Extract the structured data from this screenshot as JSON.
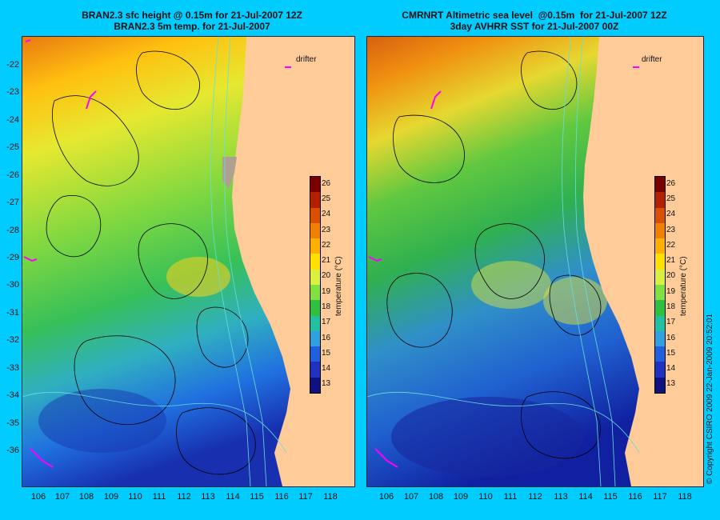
{
  "left_panel": {
    "title_line1": "BRAN2.3 sfc height @ 0.15m for 21-Jul-2007 12Z",
    "title_line2": "BRAN2.3 5m temp. for 21-Jul-2007"
  },
  "right_panel": {
    "title_line1": "CMRNRT Altimetric sea level  @0.15m  for 21-Jul-2007 12Z",
    "title_line2": "3day AVHRR SST for 21-Jul-2007 00Z"
  },
  "lat_labels": [
    "-22",
    "-23",
    "-24",
    "-25",
    "-26",
    "-27",
    "-28",
    "-29",
    "-30",
    "-31",
    "-32",
    "-33",
    "-34",
    "-35",
    "-36"
  ],
  "lon_labels": [
    "106",
    "107",
    "108",
    "109",
    "110",
    "111",
    "112",
    "113",
    "114",
    "115",
    "116",
    "117",
    "118"
  ],
  "colorbar": {
    "ticks": [
      "26",
      "25",
      "24",
      "23",
      "22",
      "21",
      "20",
      "19",
      "18",
      "17",
      "16",
      "15",
      "14",
      "13"
    ],
    "title": "temperature (°C)",
    "colors": [
      "#7a0000",
      "#b22000",
      "#d85000",
      "#f08000",
      "#ffb000",
      "#ffe000",
      "#d8f040",
      "#80e040",
      "#30c040",
      "#20c0a0",
      "#30a0e0",
      "#2060e0",
      "#2030c0",
      "#101080"
    ]
  },
  "drifter_label": "drifter",
  "copyright": "© Copyright CSIRO 2009   22-Jan-2009 20:52:01",
  "colors": {
    "background": "#00ccff",
    "land": "#ffcc99",
    "drifter": "#ff00ff",
    "contour": "#000000",
    "isobath": "#66dddd"
  }
}
